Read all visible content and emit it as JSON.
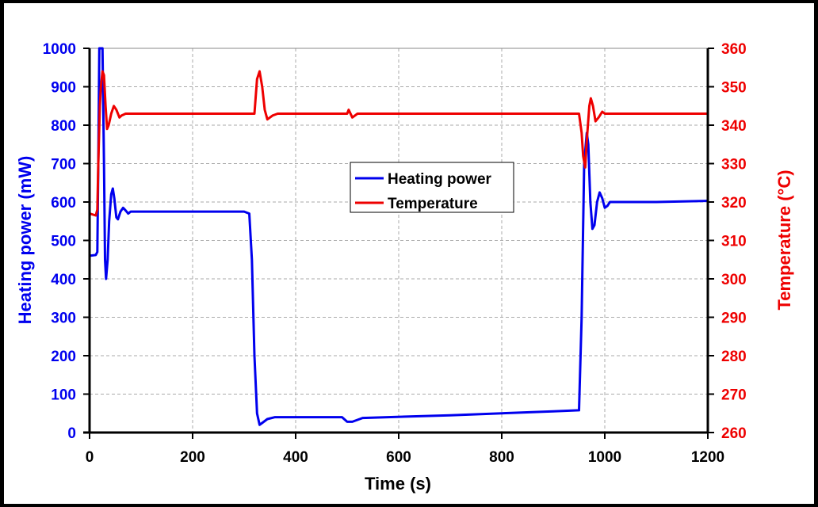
{
  "chart_data": {
    "type": "line",
    "title": "",
    "xlabel": "Time (s)",
    "ylabel": "Heating power (mW)",
    "y2label": "Temperature (°C)",
    "xlim": [
      0,
      1200
    ],
    "ylim": [
      0,
      1000
    ],
    "y2lim": [
      260,
      360
    ],
    "xticks": [
      0,
      200,
      400,
      600,
      800,
      1000,
      1200
    ],
    "yticks": [
      0,
      100,
      200,
      300,
      400,
      500,
      600,
      700,
      800,
      900,
      1000
    ],
    "y2ticks": [
      260,
      270,
      280,
      290,
      300,
      310,
      320,
      330,
      340,
      350,
      360
    ],
    "grid": true,
    "legend_position": "center",
    "series": [
      {
        "name": "Heating power",
        "axis": "left",
        "color": "#0000ee",
        "points": [
          [
            0,
            460
          ],
          [
            12,
            462
          ],
          [
            15,
            470
          ],
          [
            17,
            700
          ],
          [
            19,
            1000
          ],
          [
            22,
            1060
          ],
          [
            25,
            1000
          ],
          [
            28,
            700
          ],
          [
            30,
            450
          ],
          [
            32,
            400
          ],
          [
            35,
            450
          ],
          [
            38,
            550
          ],
          [
            42,
            620
          ],
          [
            45,
            635
          ],
          [
            48,
            610
          ],
          [
            52,
            560
          ],
          [
            55,
            555
          ],
          [
            60,
            575
          ],
          [
            65,
            585
          ],
          [
            70,
            578
          ],
          [
            75,
            570
          ],
          [
            80,
            575
          ],
          [
            100,
            575
          ],
          [
            160,
            575
          ],
          [
            300,
            575
          ],
          [
            310,
            570
          ],
          [
            315,
            450
          ],
          [
            320,
            200
          ],
          [
            325,
            50
          ],
          [
            330,
            20
          ],
          [
            335,
            25
          ],
          [
            345,
            35
          ],
          [
            360,
            40
          ],
          [
            490,
            40
          ],
          [
            500,
            28
          ],
          [
            510,
            28
          ],
          [
            530,
            38
          ],
          [
            700,
            45
          ],
          [
            900,
            55
          ],
          [
            950,
            58
          ],
          [
            955,
            300
          ],
          [
            960,
            700
          ],
          [
            965,
            780
          ],
          [
            968,
            750
          ],
          [
            972,
            600
          ],
          [
            976,
            530
          ],
          [
            980,
            540
          ],
          [
            985,
            600
          ],
          [
            990,
            625
          ],
          [
            995,
            610
          ],
          [
            1000,
            585
          ],
          [
            1005,
            590
          ],
          [
            1010,
            600
          ],
          [
            1030,
            600
          ],
          [
            1100,
            600
          ],
          [
            1200,
            603
          ]
        ]
      },
      {
        "name": "Temperature",
        "axis": "right",
        "color": "#ee0000",
        "points": [
          [
            0,
            317
          ],
          [
            12,
            316.5
          ],
          [
            15,
            318
          ],
          [
            17,
            330
          ],
          [
            20,
            345
          ],
          [
            22,
            350
          ],
          [
            25,
            354
          ],
          [
            28,
            353
          ],
          [
            31,
            345
          ],
          [
            34,
            339
          ],
          [
            37,
            340
          ],
          [
            42,
            343
          ],
          [
            47,
            345
          ],
          [
            52,
            344
          ],
          [
            58,
            342
          ],
          [
            62,
            342.5
          ],
          [
            70,
            343
          ],
          [
            320,
            343
          ],
          [
            325,
            352
          ],
          [
            330,
            354
          ],
          [
            335,
            350
          ],
          [
            340,
            344
          ],
          [
            345,
            341.5
          ],
          [
            355,
            342.5
          ],
          [
            365,
            343
          ],
          [
            500,
            343
          ],
          [
            503,
            344
          ],
          [
            510,
            342
          ],
          [
            520,
            343
          ],
          [
            950,
            343
          ],
          [
            955,
            338
          ],
          [
            958,
            332
          ],
          [
            962,
            329
          ],
          [
            965,
            336
          ],
          [
            970,
            345
          ],
          [
            973,
            347
          ],
          [
            977,
            345
          ],
          [
            982,
            341
          ],
          [
            988,
            342
          ],
          [
            995,
            343.5
          ],
          [
            1000,
            343
          ],
          [
            1010,
            343
          ],
          [
            1200,
            343
          ]
        ]
      }
    ]
  }
}
